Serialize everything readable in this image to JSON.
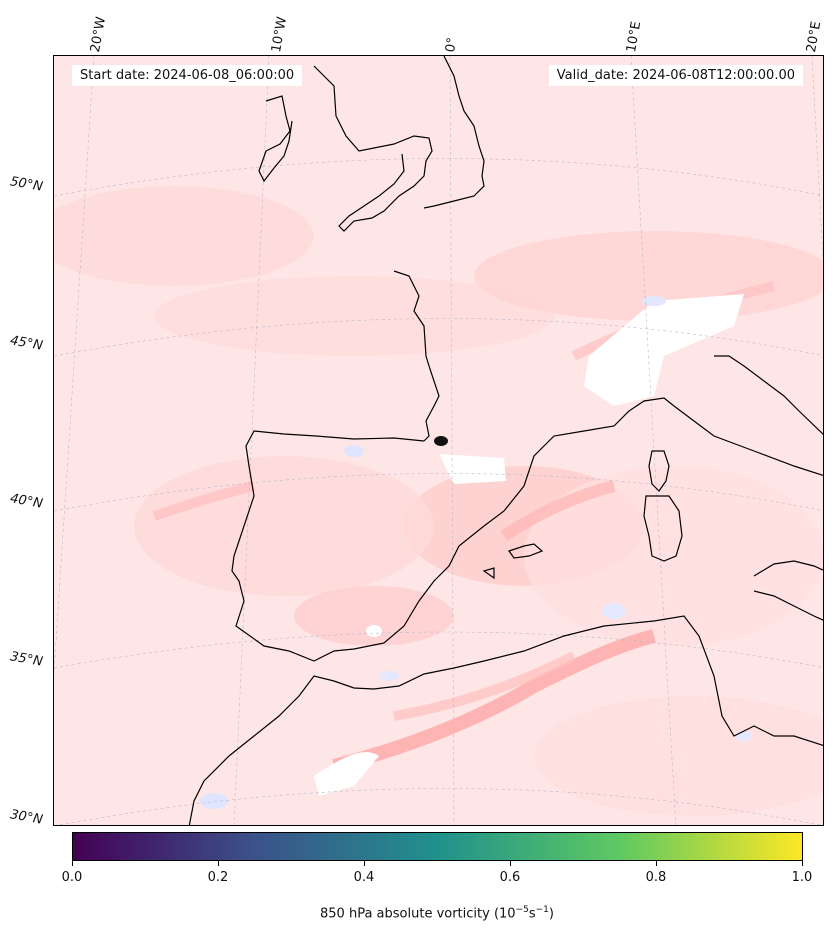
{
  "header": {
    "start_date": "Start date: 2024-06-08_06:00:00",
    "valid_date": "Valid_date: 2024-06-08T12:00:00.00"
  },
  "map": {
    "projection": "Lambert conformal",
    "lon_labels": [
      "20°W",
      "10°W",
      "0°",
      "10°E",
      "20°E"
    ],
    "lat_labels": [
      "50°N",
      "45°N",
      "40°N",
      "35°N",
      "30°N"
    ],
    "gridlines": true,
    "field": "850 hPa absolute vorticity",
    "colors": {
      "positive_light": "#ffe8e8",
      "positive_mid": "#ffcfcf",
      "positive_strong": "#ff9e9e",
      "negative": "#dfe4ff",
      "near_zero": "#ffffff",
      "coastline": "#000000"
    }
  },
  "colorbar": {
    "ticks": [
      "0.0",
      "0.2",
      "0.4",
      "0.6",
      "0.8",
      "1.0"
    ],
    "tick_values": [
      0.0,
      0.2,
      0.4,
      0.6,
      0.8,
      1.0
    ],
    "label_prefix": "850 hPa absolute vorticity (10",
    "label_exp1": "−5",
    "label_mid": "s",
    "label_exp2": "−1",
    "label_suffix": ")",
    "colormap": "viridis",
    "colormap_stops": [
      "#440154",
      "#3b528b",
      "#21918c",
      "#5ec962",
      "#fde725"
    ]
  }
}
